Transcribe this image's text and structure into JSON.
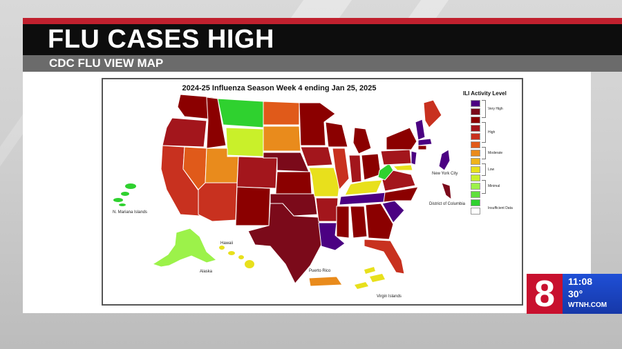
{
  "headline": {
    "title": "FLU CASES HIGH",
    "subtitle": "CDC FLU VIEW MAP"
  },
  "map": {
    "title": "2024-25 Influenza Season Week 4 ending Jan 25, 2025",
    "legend_title": "ILI Activity Level",
    "legend_levels": [
      {
        "level": 13,
        "color": "#4b0082"
      },
      {
        "level": 12,
        "color": "#7b0a1a"
      },
      {
        "level": 11,
        "color": "#8b0000"
      },
      {
        "level": 10,
        "color": "#a3161c"
      },
      {
        "level": 9,
        "color": "#c8311f"
      },
      {
        "level": 8,
        "color": "#e05a1a"
      },
      {
        "level": 7,
        "color": "#e98b1c"
      },
      {
        "level": 6,
        "color": "#f0b31c"
      },
      {
        "level": 5,
        "color": "#e8e01c"
      },
      {
        "level": 4,
        "color": "#c9f02a"
      },
      {
        "level": 3,
        "color": "#9cf24a"
      },
      {
        "level": 2,
        "color": "#5fe03c"
      },
      {
        "level": 1,
        "color": "#2fd12f"
      },
      {
        "level": 0,
        "color": "#ffffff"
      }
    ],
    "legend_groups": [
      "Very High",
      "High",
      "Moderate",
      "Low",
      "Minimal",
      "Insufficient Data"
    ],
    "labels": {
      "mariana": "N. Mariana Islands",
      "nyc": "New York City",
      "dc": "District of Columbia",
      "hawaii": "Hawaii",
      "alaska": "Alaska",
      "puerto_rico": "Puerto Rico",
      "virgin_islands": "Virgin Islands"
    }
  },
  "station": {
    "logo": "8",
    "time": "11:08",
    "temp": "30°",
    "site": "WTNH.COM"
  }
}
